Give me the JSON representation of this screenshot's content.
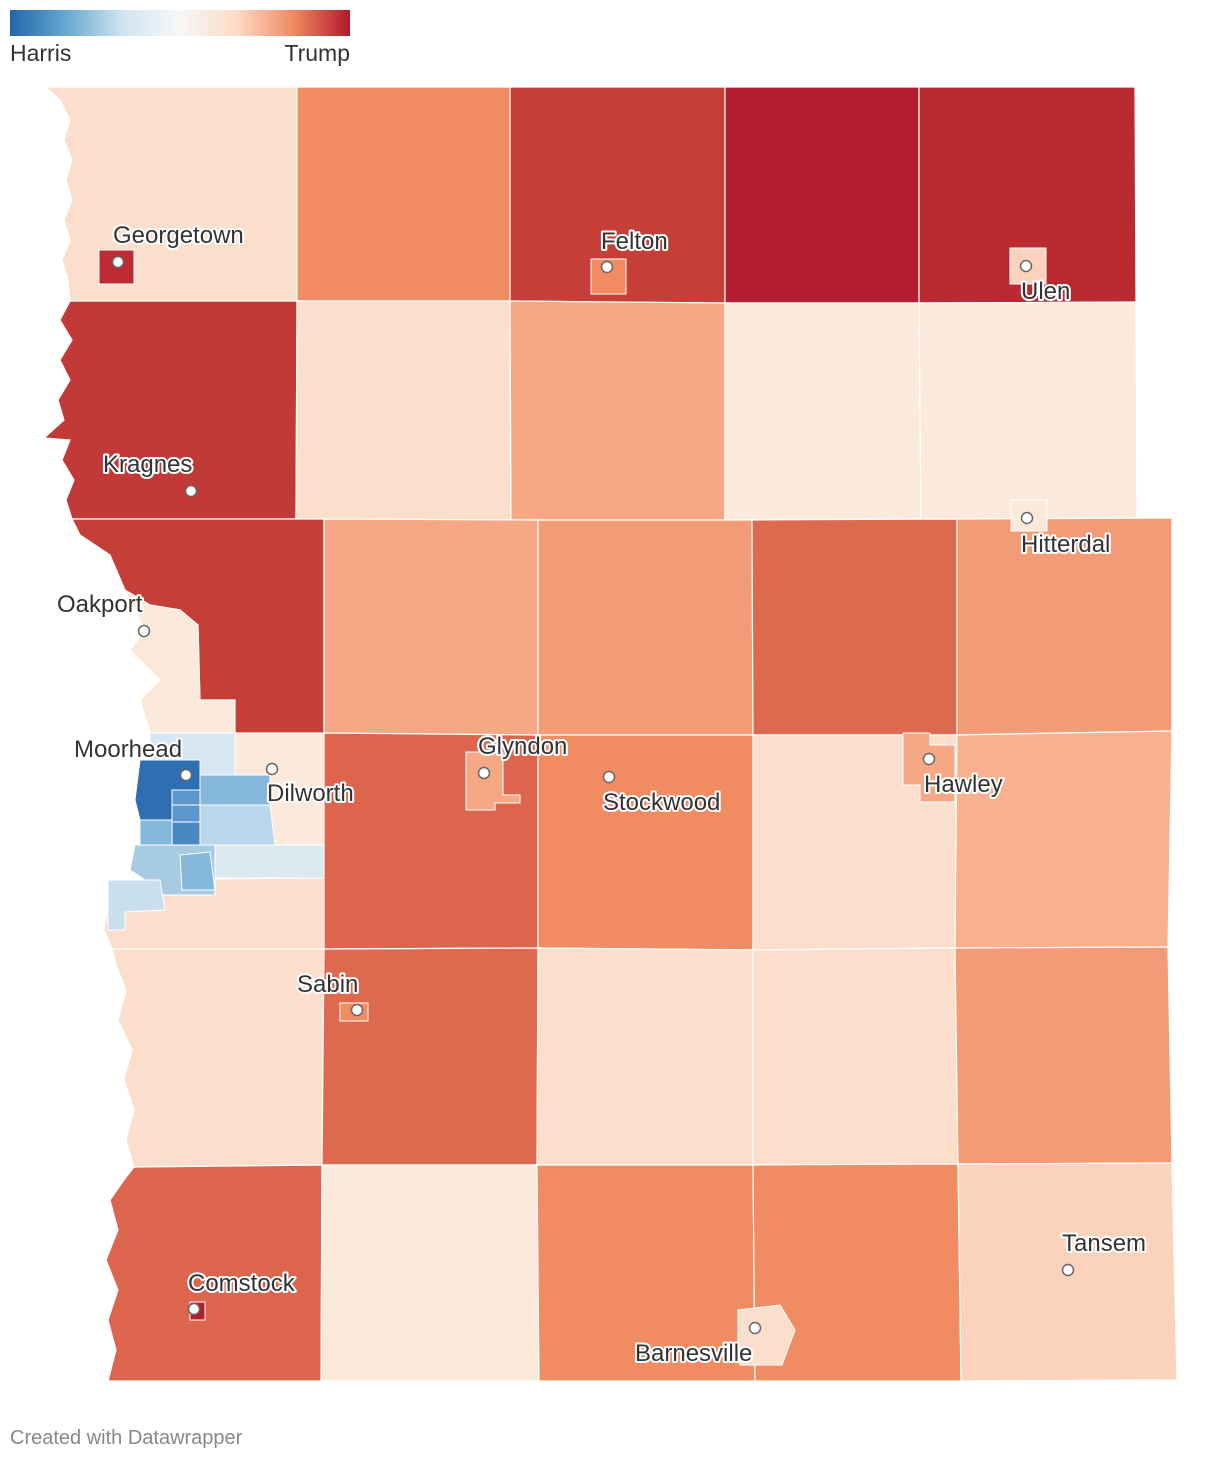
{
  "legend": {
    "left_label": "Harris",
    "right_label": "Trump",
    "gradient": [
      "#2166ac",
      "#67a9cf",
      "#d1e5f0",
      "#f7f7f7",
      "#fddbc7",
      "#ef8a62",
      "#b2182b"
    ]
  },
  "map": {
    "regions": [
      {
        "name": "twp-r1c1",
        "color": "#fbdfcc"
      },
      {
        "name": "twp-r1c2",
        "color": "#f08b62"
      },
      {
        "name": "twp-r1c3",
        "color": "#c53f38"
      },
      {
        "name": "twp-r1c4",
        "color": "#b21e2e"
      },
      {
        "name": "twp-r1c5",
        "color": "#b92a31"
      },
      {
        "name": "twp-r2c1",
        "color": "#c23a37"
      },
      {
        "name": "twp-r2c2",
        "color": "#fbdfcc"
      },
      {
        "name": "twp-r2c3",
        "color": "#f6a784"
      },
      {
        "name": "twp-r2c4",
        "color": "#fbeadb"
      },
      {
        "name": "twp-r2c5",
        "color": "#fbeadb"
      },
      {
        "name": "twp-r3c1",
        "color": "#c53f38"
      },
      {
        "name": "twp-r3c2",
        "color": "#f6a784"
      },
      {
        "name": "twp-r3c3",
        "color": "#f39b77"
      },
      {
        "name": "twp-r3c4",
        "color": "#dd6a4f"
      },
      {
        "name": "twp-r3c5",
        "color": "#f39b77"
      },
      {
        "name": "twp-r4c2",
        "color": "#dd654e"
      },
      {
        "name": "twp-r4c3",
        "color": "#f08b62"
      },
      {
        "name": "twp-r4c4",
        "color": "#fbdfcc"
      },
      {
        "name": "twp-r4c5",
        "color": "#f8b08f"
      },
      {
        "name": "twp-r5c1",
        "color": "#fbdfcc"
      },
      {
        "name": "twp-r5c2",
        "color": "#dd6a4f"
      },
      {
        "name": "twp-r5c3",
        "color": "#fbdfcc"
      },
      {
        "name": "twp-r5c4",
        "color": "#fbdfcc"
      },
      {
        "name": "twp-r5c5",
        "color": "#f39b77"
      },
      {
        "name": "twp-r6c1",
        "color": "#dd654e"
      },
      {
        "name": "twp-r6c2",
        "color": "#fbeadb"
      },
      {
        "name": "twp-r6c3",
        "color": "#f08b62"
      },
      {
        "name": "twp-r6c4",
        "color": "#f08b62"
      },
      {
        "name": "twp-r6c5",
        "color": "#fbd3bc"
      }
    ],
    "towns": [
      {
        "name": "Georgetown"
      },
      {
        "name": "Felton"
      },
      {
        "name": "Ulen"
      },
      {
        "name": "Kragnes"
      },
      {
        "name": "Hitterdal"
      },
      {
        "name": "Oakport"
      },
      {
        "name": "Moorhead"
      },
      {
        "name": "Dilworth"
      },
      {
        "name": "Glyndon"
      },
      {
        "name": "Stockwood"
      },
      {
        "name": "Hawley"
      },
      {
        "name": "Sabin"
      },
      {
        "name": "Comstock"
      },
      {
        "name": "Barnesville"
      },
      {
        "name": "Tansem"
      }
    ]
  },
  "footer": {
    "credit": "Created with Datawrapper"
  }
}
